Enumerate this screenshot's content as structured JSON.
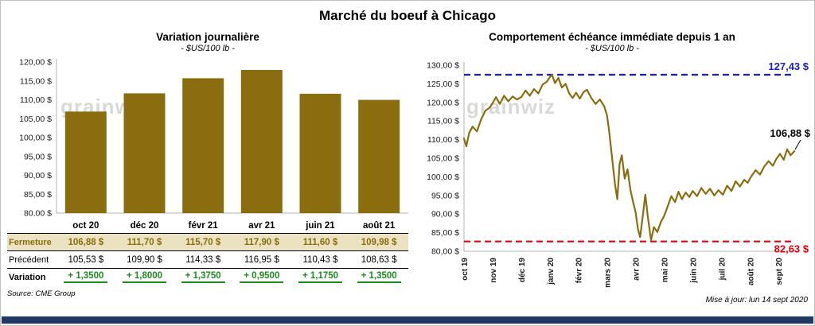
{
  "page": {
    "title": "Marché du boeuf à Chicago",
    "source_note": "Source: CME Group",
    "updated_note": "Mise à jour: lun 14 sept 2020",
    "watermark": "grainwiz"
  },
  "colors": {
    "gold": "#8a6d0e",
    "bar_fill": "#8a6d0e",
    "line_stroke": "#8a6d0e",
    "ref_high_blue": "#1c1ccc",
    "ref_low_red": "#e8000d",
    "variation_green": "#1e8a1e",
    "fermeture_row_bg": "#eae2c0",
    "footer_bar_blue": "#1f3864",
    "watermark_gray": "#d9d9d9"
  },
  "chart_data": [
    {
      "type": "bar",
      "title": "Variation  journalière",
      "subtitle": "- $US/100 lb -",
      "categories": [
        "oct 20",
        "déc 20",
        "févr 21",
        "avr 21",
        "juin 21",
        "août 21"
      ],
      "values": [
        106.88,
        111.7,
        115.7,
        117.9,
        111.6,
        109.98
      ],
      "ylim": [
        80,
        120
      ],
      "ytick_step": 5,
      "ytick_labels": [
        "120,00 $",
        "115,00 $",
        "110,00 $",
        "105,00 $",
        "100,00 $",
        "95,00 $",
        "90,00 $",
        "85,00 $",
        "80,00 $"
      ],
      "grid": false,
      "legend": "none"
    },
    {
      "type": "line",
      "title": "Comportement  échéance  immédiate  depuis 1 an",
      "subtitle": "- $US/100 lb -",
      "x_labels": [
        "oct 19",
        "nov 19",
        "déc 19",
        "janv 20",
        "févr 20",
        "mars 20",
        "avr 20",
        "mai 20",
        "juin 20",
        "juil 20",
        "août 20",
        "sept 20"
      ],
      "ylim": [
        80,
        130
      ],
      "ytick_step": 5,
      "ytick_labels": [
        "130,00 $",
        "125,00 $",
        "120,00 $",
        "115,00 $",
        "110,00 $",
        "105,00 $",
        "100,00 $",
        "95,00 $",
        "90,00 $",
        "85,00 $",
        "80,00 $"
      ],
      "ref_high": {
        "value": 127.43,
        "label": "127,43 $"
      },
      "ref_low": {
        "value": 82.63,
        "label": "82,63 $"
      },
      "last_value": 106.88,
      "last_label": "106,88 $",
      "grid": false,
      "legend": "none",
      "points": [
        [
          0.0,
          110.3
        ],
        [
          0.08,
          108.2
        ],
        [
          0.18,
          111.8
        ],
        [
          0.3,
          113.5
        ],
        [
          0.45,
          112.2
        ],
        [
          0.6,
          115.5
        ],
        [
          0.75,
          117.8
        ],
        [
          0.9,
          118.6
        ],
        [
          1.0,
          119.8
        ],
        [
          1.12,
          121.4
        ],
        [
          1.25,
          119.6
        ],
        [
          1.4,
          121.8
        ],
        [
          1.55,
          120.3
        ],
        [
          1.7,
          121.6
        ],
        [
          1.85,
          120.8
        ],
        [
          2.0,
          121.4
        ],
        [
          2.15,
          123.2
        ],
        [
          2.3,
          121.8
        ],
        [
          2.45,
          123.6
        ],
        [
          2.6,
          122.4
        ],
        [
          2.75,
          124.8
        ],
        [
          2.9,
          125.6
        ],
        [
          3.0,
          126.8
        ],
        [
          3.08,
          127.4
        ],
        [
          3.18,
          125.2
        ],
        [
          3.3,
          126.6
        ],
        [
          3.42,
          124.0
        ],
        [
          3.55,
          125.0
        ],
        [
          3.68,
          122.4
        ],
        [
          3.8,
          121.2
        ],
        [
          3.92,
          122.6
        ],
        [
          4.05,
          121.0
        ],
        [
          4.18,
          122.8
        ],
        [
          4.3,
          123.4
        ],
        [
          4.45,
          121.2
        ],
        [
          4.6,
          119.6
        ],
        [
          4.75,
          120.8
        ],
        [
          4.9,
          119.0
        ],
        [
          5.0,
          116.5
        ],
        [
          5.08,
          112.0
        ],
        [
          5.18,
          105.0
        ],
        [
          5.28,
          98.0
        ],
        [
          5.36,
          94.0
        ],
        [
          5.44,
          103.5
        ],
        [
          5.52,
          105.8
        ],
        [
          5.62,
          99.5
        ],
        [
          5.72,
          102.0
        ],
        [
          5.82,
          96.5
        ],
        [
          5.92,
          93.0
        ],
        [
          6.0,
          90.5
        ],
        [
          6.08,
          86.0
        ],
        [
          6.16,
          83.8
        ],
        [
          6.26,
          90.0
        ],
        [
          6.34,
          95.2
        ],
        [
          6.44,
          88.5
        ],
        [
          6.54,
          83.0
        ],
        [
          6.64,
          86.5
        ],
        [
          6.76,
          85.2
        ],
        [
          6.88,
          87.8
        ],
        [
          7.0,
          89.5
        ],
        [
          7.12,
          92.0
        ],
        [
          7.25,
          94.8
        ],
        [
          7.38,
          93.2
        ],
        [
          7.5,
          96.0
        ],
        [
          7.62,
          94.0
        ],
        [
          7.75,
          95.8
        ],
        [
          7.88,
          94.6
        ],
        [
          8.0,
          96.2
        ],
        [
          8.15,
          94.8
        ],
        [
          8.3,
          97.0
        ],
        [
          8.45,
          95.4
        ],
        [
          8.6,
          96.8
        ],
        [
          8.75,
          95.0
        ],
        [
          8.9,
          96.4
        ],
        [
          9.05,
          95.2
        ],
        [
          9.2,
          97.6
        ],
        [
          9.35,
          96.2
        ],
        [
          9.5,
          98.8
        ],
        [
          9.65,
          97.4
        ],
        [
          9.8,
          99.2
        ],
        [
          9.92,
          98.4
        ],
        [
          10.05,
          100.2
        ],
        [
          10.2,
          101.8
        ],
        [
          10.35,
          100.6
        ],
        [
          10.5,
          102.8
        ],
        [
          10.65,
          104.2
        ],
        [
          10.8,
          103.0
        ],
        [
          10.92,
          104.8
        ],
        [
          11.05,
          106.2
        ],
        [
          11.18,
          104.6
        ],
        [
          11.3,
          107.4
        ],
        [
          11.42,
          105.8
        ],
        [
          11.55,
          106.88
        ]
      ]
    }
  ],
  "table": {
    "rows": [
      {
        "label": "Fermeture",
        "values": [
          "106,88  $",
          "111,70  $",
          "115,70  $",
          "117,90  $",
          "111,60  $",
          "109,98  $"
        ]
      },
      {
        "label": "Précédent",
        "values": [
          "105,53  $",
          "109,90  $",
          "114,33  $",
          "116,95  $",
          "110,43  $",
          "108,63  $"
        ]
      },
      {
        "label": "Variation",
        "values": [
          "+ 1,3500",
          "+ 1,8000",
          "+ 1,3750",
          "+ 0,9500",
          "+ 1,1750",
          "+ 1,3500"
        ]
      }
    ]
  }
}
